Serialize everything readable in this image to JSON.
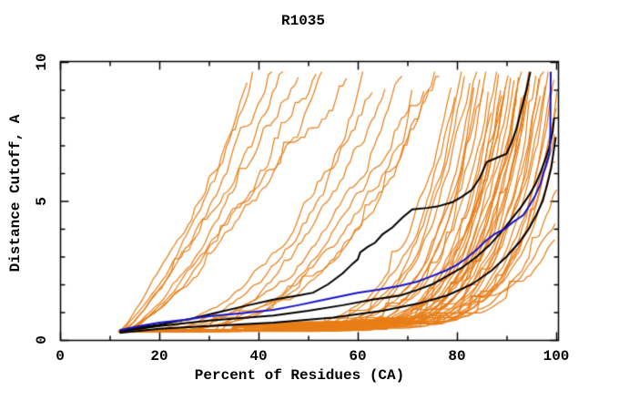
{
  "title": "R1035",
  "axes": {
    "xlabel": "Percent of Residues (CA)",
    "ylabel": "Distance Cutoff, A",
    "x_major_ticks": [
      0,
      20,
      40,
      60,
      80,
      100
    ],
    "x_minor_ticks": [
      10,
      30,
      50,
      70,
      90
    ],
    "y_major_ticks": [
      0,
      5,
      10
    ],
    "y_minor_ticks": [
      1,
      2,
      3,
      4,
      6,
      7,
      8,
      9
    ],
    "xlim": [
      0,
      100.4
    ],
    "ylim": [
      0,
      10.03
    ],
    "grid": false,
    "legend": "none"
  },
  "colors": {
    "background": "#ffffff",
    "axis": "#000000",
    "text": "#000000",
    "prediction_orange": "#e87d16",
    "reference_black": "#000000",
    "reference_blue": "#1414cc"
  },
  "chart_data": {
    "type": "line",
    "title": "R1035",
    "xlabel": "Percent of Residues (CA)",
    "ylabel": "Distance Cutoff, A",
    "xlim": [
      0,
      100.4
    ],
    "ylim": [
      0,
      10.03
    ],
    "description": "Distance cutoff (A) vs percent of CA residues; ~60 orange prediction curves, 3 black reference curves, 1 blue reference curve",
    "series": [
      {
        "name": "black-curve-1",
        "color": "#000000",
        "width": 2,
        "points": [
          [
            12,
            0.3
          ],
          [
            16,
            0.45
          ],
          [
            20,
            0.55
          ],
          [
            26,
            0.75
          ],
          [
            32,
            1.0
          ],
          [
            38,
            1.25
          ],
          [
            43,
            1.45
          ],
          [
            48,
            1.6
          ],
          [
            51,
            1.7
          ],
          [
            54,
            2.0
          ],
          [
            57,
            2.4
          ],
          [
            59,
            2.75
          ],
          [
            60,
            2.9
          ],
          [
            60.5,
            3.15
          ],
          [
            62,
            3.35
          ],
          [
            63.5,
            3.5
          ],
          [
            65,
            3.8
          ],
          [
            67,
            4.05
          ],
          [
            69,
            4.4
          ],
          [
            71,
            4.7
          ],
          [
            74,
            4.75
          ],
          [
            76,
            4.8
          ],
          [
            79,
            4.95
          ],
          [
            81,
            5.15
          ],
          [
            83,
            5.4
          ],
          [
            84.5,
            5.8
          ],
          [
            86,
            6.4
          ],
          [
            88,
            6.55
          ],
          [
            90,
            6.7
          ],
          [
            91,
            7.1
          ],
          [
            92,
            7.6
          ],
          [
            93,
            8.3
          ],
          [
            94,
            9.0
          ],
          [
            94.8,
            9.65
          ]
        ]
      },
      {
        "name": "black-curve-2",
        "color": "#000000",
        "width": 2,
        "points": [
          [
            12,
            0.3
          ],
          [
            20,
            0.5
          ],
          [
            30,
            0.7
          ],
          [
            43,
            0.88
          ],
          [
            50,
            1.05
          ],
          [
            57,
            1.25
          ],
          [
            63,
            1.45
          ],
          [
            68.6,
            1.6
          ],
          [
            72,
            1.8
          ],
          [
            75,
            2.0
          ],
          [
            78,
            2.3
          ],
          [
            81,
            2.6
          ],
          [
            84,
            3.0
          ],
          [
            86.5,
            3.4
          ],
          [
            89,
            3.9
          ],
          [
            91,
            4.35
          ],
          [
            93,
            4.8
          ],
          [
            94.5,
            5.2
          ],
          [
            95.8,
            5.6
          ],
          [
            97,
            6.1
          ],
          [
            98,
            6.6
          ],
          [
            98.7,
            7.0
          ],
          [
            99.3,
            7.5
          ],
          [
            99.6,
            8.0
          ]
        ]
      },
      {
        "name": "black-curve-3",
        "color": "#000000",
        "width": 2,
        "points": [
          [
            12,
            0.25
          ],
          [
            20,
            0.4
          ],
          [
            30,
            0.5
          ],
          [
            43,
            0.62
          ],
          [
            55,
            0.8
          ],
          [
            65,
            1.05
          ],
          [
            72,
            1.3
          ],
          [
            78,
            1.6
          ],
          [
            83,
            2.0
          ],
          [
            87,
            2.5
          ],
          [
            90,
            3.0
          ],
          [
            92.5,
            3.5
          ],
          [
            94.5,
            4.0
          ],
          [
            96,
            4.5
          ],
          [
            97.3,
            5.0
          ],
          [
            98.2,
            5.6
          ],
          [
            99,
            6.2
          ],
          [
            99.5,
            6.8
          ],
          [
            99.9,
            7.3
          ]
        ]
      },
      {
        "name": "blue-curve",
        "color": "#1414cc",
        "width": 2,
        "points": [
          [
            12,
            0.35
          ],
          [
            16,
            0.5
          ],
          [
            20,
            0.62
          ],
          [
            25,
            0.72
          ],
          [
            30,
            0.85
          ],
          [
            36,
            0.95
          ],
          [
            43,
            1.08
          ],
          [
            48,
            1.25
          ],
          [
            52,
            1.4
          ],
          [
            56,
            1.55
          ],
          [
            60,
            1.7
          ],
          [
            64,
            1.8
          ],
          [
            68.6,
            1.95
          ],
          [
            72,
            2.1
          ],
          [
            75,
            2.3
          ],
          [
            77.8,
            2.5
          ],
          [
            80,
            2.7
          ],
          [
            82,
            2.95
          ],
          [
            84,
            3.25
          ],
          [
            85.7,
            3.55
          ],
          [
            87.5,
            3.8
          ],
          [
            89.7,
            4.0
          ],
          [
            91,
            4.2
          ],
          [
            93.4,
            4.5
          ],
          [
            94.5,
            4.8
          ],
          [
            95.8,
            5.2
          ],
          [
            96.8,
            5.6
          ],
          [
            97.4,
            6.0
          ],
          [
            98.0,
            6.3
          ],
          [
            98.6,
            6.7
          ],
          [
            98.8,
            7.2
          ],
          [
            98.9,
            9.65
          ]
        ]
      }
    ],
    "prediction_curves": {
      "color": "#e87d16",
      "width": 1.2,
      "start_value": 0.3,
      "default_top_value": 9.65,
      "params_format": [
        "start_pct",
        "top_pct",
        "shape_k",
        "optional_top_value"
      ],
      "params": [
        [
          11.8,
          38,
          1.2
        ],
        [
          12.2,
          40,
          1.25
        ],
        [
          12.6,
          43,
          1.3
        ],
        [
          12.0,
          45.5,
          1.3
        ],
        [
          13.0,
          48,
          1.35
        ],
        [
          12.4,
          52,
          1.4
        ],
        [
          12.8,
          55.5,
          1.35
        ],
        [
          12.2,
          58,
          1.4
        ],
        [
          12.0,
          61,
          2.6
        ],
        [
          12.5,
          63,
          2.7
        ],
        [
          13.0,
          66,
          2.8
        ],
        [
          12.2,
          69,
          2.9
        ],
        [
          12.8,
          71,
          3.0
        ],
        [
          12.4,
          73.5,
          3.0
        ],
        [
          13.2,
          75.5,
          3.1
        ],
        [
          12.0,
          77,
          3.2
        ],
        [
          11.6,
          79,
          7
        ],
        [
          13.1,
          80,
          7.2
        ],
        [
          12.3,
          81,
          7.4
        ],
        [
          13.6,
          82,
          7.6
        ],
        [
          11.9,
          82.8,
          7.8
        ],
        [
          12.7,
          83.5,
          8
        ],
        [
          13.3,
          84.2,
          8.2
        ],
        [
          11.8,
          85,
          8.4
        ],
        [
          12.5,
          85.6,
          8.6
        ],
        [
          13.0,
          86.2,
          8.8
        ],
        [
          12.1,
          86.8,
          9
        ],
        [
          13.4,
          87.4,
          9.2
        ],
        [
          11.7,
          88,
          9.4
        ],
        [
          12.8,
          88.5,
          9.6
        ],
        [
          13.2,
          89,
          9.8
        ],
        [
          12.0,
          89.5,
          10
        ],
        [
          12.6,
          90,
          10.2
        ],
        [
          13.5,
          90.4,
          8.5
        ],
        [
          11.9,
          90.8,
          9
        ],
        [
          12.4,
          91.2,
          9.5
        ],
        [
          13.1,
          91.6,
          10
        ],
        [
          12.2,
          92,
          10.4
        ],
        [
          12.9,
          92.4,
          9.2
        ],
        [
          13.3,
          92.8,
          9.6
        ],
        [
          11.8,
          93.2,
          10
        ],
        [
          12.5,
          93.6,
          10.6
        ],
        [
          13.0,
          94,
          9.4
        ],
        [
          12.3,
          94.4,
          9.8
        ],
        [
          12.7,
          94.8,
          10.2
        ],
        [
          13.4,
          95.2,
          10.6
        ],
        [
          11.9,
          95.6,
          9.6
        ],
        [
          12.6,
          96,
          10
        ],
        [
          13.2,
          96.5,
          10.4
        ],
        [
          12.1,
          97,
          10.8
        ],
        [
          12.8,
          97.5,
          11
        ],
        [
          12.4,
          98,
          10.5
        ],
        [
          13.0,
          98.7,
          10.8
        ],
        [
          12.2,
          99.3,
          11
        ],
        [
          12.7,
          99.8,
          11.2
        ],
        [
          12.0,
          100.3,
          11,
          9.4
        ],
        [
          12.5,
          100.3,
          10.5,
          8.4
        ],
        [
          12.2,
          100.3,
          10,
          7.4
        ],
        [
          13.0,
          100.3,
          9.5,
          6.4
        ],
        [
          12.6,
          100.3,
          9,
          5.4
        ],
        [
          12.3,
          100.3,
          8.5,
          4.4
        ],
        [
          12.9,
          100.3,
          8,
          3.6
        ]
      ]
    }
  }
}
